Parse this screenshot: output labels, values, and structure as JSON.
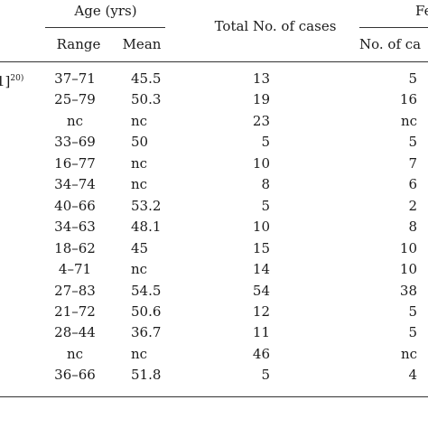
{
  "header": {
    "age_group": "Age (yrs)",
    "range": "Range",
    "mean": "Mean",
    "total_cases": "Total No. of cases",
    "female_group": "Fe",
    "female_cases": "No. of ca"
  },
  "rows": [
    {
      "ref_mark": "1]",
      "ref_sup": "20)",
      "range": "37–71",
      "mean": "45.5",
      "total": "13",
      "female": "5"
    },
    {
      "ref_mark": "",
      "ref_sup": "",
      "range": "25–79",
      "mean": "50.3",
      "total": "19",
      "female": "16"
    },
    {
      "ref_mark": "",
      "ref_sup": "",
      "range": "nc",
      "mean": "nc",
      "total": "23",
      "female": "nc"
    },
    {
      "ref_mark": "",
      "ref_sup": "",
      "range": "33–69",
      "mean": "50",
      "total": "5",
      "female": "5"
    },
    {
      "ref_mark": "",
      "ref_sup": "",
      "range": "16–77",
      "mean": "nc",
      "total": "10",
      "female": "7"
    },
    {
      "ref_mark": "",
      "ref_sup": "",
      "range": "34–74",
      "mean": "nc",
      "total": "8",
      "female": "6"
    },
    {
      "ref_mark": "",
      "ref_sup": "",
      "range": "40–66",
      "mean": "53.2",
      "total": "5",
      "female": "2"
    },
    {
      "ref_mark": "",
      "ref_sup": "",
      "range": "34–63",
      "mean": "48.1",
      "total": "10",
      "female": "8"
    },
    {
      "ref_mark": "",
      "ref_sup": "",
      "range": "18–62",
      "mean": "45",
      "total": "15",
      "female": "10"
    },
    {
      "ref_mark": "",
      "ref_sup": "",
      "range": "4–71",
      "mean": "nc",
      "total": "14",
      "female": "10"
    },
    {
      "ref_mark": "",
      "ref_sup": "",
      "range": "27–83",
      "mean": "54.5",
      "total": "54",
      "female": "38"
    },
    {
      "ref_mark": "",
      "ref_sup": "",
      "range": "21–72",
      "mean": "50.6",
      "total": "12",
      "female": "5"
    },
    {
      "ref_mark": "",
      "ref_sup": "",
      "range": "28–44",
      "mean": "36.7",
      "total": "11",
      "female": "5"
    },
    {
      "ref_mark": "",
      "ref_sup": "",
      "range": "nc",
      "mean": "nc",
      "total": "46",
      "female": "nc"
    },
    {
      "ref_mark": "",
      "ref_sup": "",
      "range": "36–66",
      "mean": "51.8",
      "total": "5",
      "female": "4"
    }
  ]
}
